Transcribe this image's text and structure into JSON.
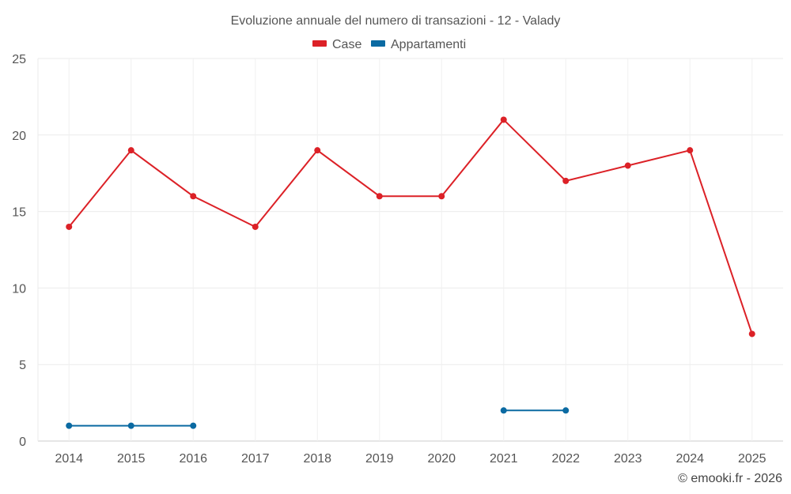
{
  "chart_data": {
    "type": "line",
    "title": "Evoluzione annuale del numero di transazioni - 12 - Valady",
    "xlabel": "",
    "ylabel": "",
    "categories": [
      "2014",
      "2015",
      "2016",
      "2017",
      "2018",
      "2019",
      "2020",
      "2021",
      "2022",
      "2023",
      "2024",
      "2025"
    ],
    "ylim": [
      0,
      25
    ],
    "yticks": [
      "0",
      "5",
      "10",
      "15",
      "20",
      "25"
    ],
    "grid": true,
    "legend_position": "top-center",
    "series": [
      {
        "name": "Case",
        "color": "#dc2127",
        "values": [
          14,
          19,
          16,
          14,
          19,
          16,
          16,
          21,
          17,
          18,
          19,
          7
        ]
      },
      {
        "name": "Appartamenti",
        "color": "#0b6aa2",
        "values": [
          1,
          1,
          1,
          null,
          null,
          null,
          null,
          2,
          2,
          null,
          null,
          null
        ]
      }
    ],
    "credit": "© emooki.fr - 2026"
  }
}
